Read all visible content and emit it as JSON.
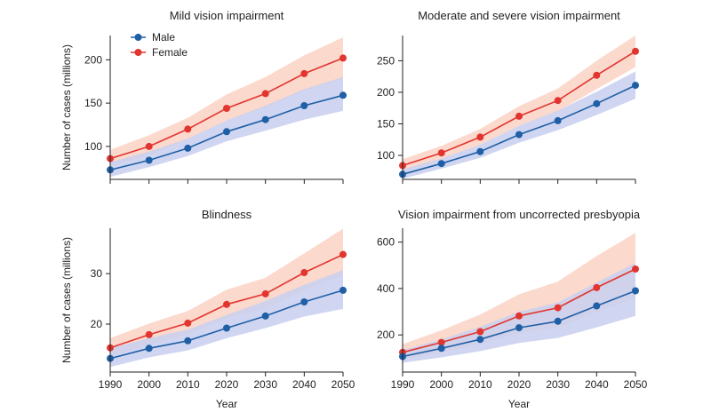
{
  "colors": {
    "male_line": "#1f5fa6",
    "male_band": "#c8cfee",
    "female_line": "#e2352f",
    "female_band": "#fad0c0"
  },
  "legend": {
    "placement": "top-left",
    "entries": [
      "Male",
      "Female"
    ]
  },
  "chart_data": [
    {
      "type": "line",
      "title": "Mild vision impairment",
      "xlabel": "",
      "ylabel": "Number of cases (millions)",
      "x": [
        1990,
        2000,
        2010,
        2020,
        2030,
        2040,
        2050
      ],
      "xticks": [],
      "yticks": [
        100,
        150,
        200
      ],
      "xlim": [
        1990,
        2050
      ],
      "ylim": [
        62,
        228
      ],
      "series": [
        {
          "name": "Male",
          "values": [
            73,
            84,
            98,
            117,
            131,
            147,
            159
          ],
          "lower": [
            65,
            76,
            89,
            106,
            118,
            131,
            141
          ],
          "upper": [
            82,
            94,
            109,
            130,
            147,
            166,
            180
          ]
        },
        {
          "name": "Female",
          "values": [
            86,
            100,
            120,
            144,
            161,
            184,
            202
          ],
          "lower": [
            77,
            90,
            108,
            130,
            145,
            164,
            178
          ],
          "upper": [
            96,
            113,
            133,
            160,
            180,
            205,
            226
          ]
        }
      ]
    },
    {
      "type": "line",
      "title": "Moderate and severe vision impairment",
      "xlabel": "",
      "ylabel": "",
      "x": [
        1990,
        2000,
        2010,
        2020,
        2030,
        2040,
        2050
      ],
      "xticks": [],
      "yticks": [
        100,
        150,
        200,
        250
      ],
      "xlim": [
        1990,
        2050
      ],
      "ylim": [
        62,
        290
      ],
      "series": [
        {
          "name": "Male",
          "values": [
            70,
            87,
            106,
            133,
            155,
            182,
            211
          ],
          "lower": [
            63,
            79,
            96,
            120,
            140,
            164,
            190
          ],
          "upper": [
            78,
            95,
            117,
            147,
            171,
            201,
            233
          ]
        },
        {
          "name": "Female",
          "values": [
            84,
            104,
            129,
            162,
            187,
            227,
            265
          ],
          "lower": [
            75,
            94,
            117,
            147,
            170,
            205,
            240
          ],
          "upper": [
            94,
            115,
            142,
            178,
            206,
            250,
            290
          ]
        }
      ]
    },
    {
      "type": "line",
      "title": "Blindness",
      "xlabel": "Year",
      "ylabel": "Number of cases (millions)",
      "x": [
        1990,
        2000,
        2010,
        2020,
        2030,
        2040,
        2050
      ],
      "xticks": [
        1990,
        2000,
        2010,
        2020,
        2030,
        2040,
        2050
      ],
      "yticks": [
        20,
        30
      ],
      "xlim": [
        1990,
        2050
      ],
      "ylim": [
        10.5,
        39
      ],
      "series": [
        {
          "name": "Male",
          "values": [
            13.2,
            15.2,
            16.7,
            19.2,
            21.6,
            24.4,
            26.7
          ],
          "lower": [
            11.5,
            13.4,
            14.8,
            17.2,
            19.2,
            21.5,
            23.0
          ],
          "upper": [
            15.2,
            17.2,
            18.9,
            21.8,
            24.6,
            27.8,
            30.7
          ]
        },
        {
          "name": "Female",
          "values": [
            15.3,
            17.9,
            20.2,
            23.9,
            26.0,
            30.2,
            33.8
          ],
          "lower": [
            13.6,
            15.9,
            18.0,
            21.2,
            23.1,
            26.7,
            29.7
          ],
          "upper": [
            17.2,
            20.1,
            22.6,
            26.8,
            29.2,
            34.0,
            38.9
          ]
        }
      ]
    },
    {
      "type": "line",
      "title": "Vision impairment from uncorrected presbyopia",
      "xlabel": "Year",
      "ylabel": "",
      "x": [
        1990,
        2000,
        2010,
        2020,
        2030,
        2040,
        2050
      ],
      "xticks": [
        1990,
        2000,
        2010,
        2020,
        2030,
        2040,
        2050
      ],
      "yticks": [
        200,
        400,
        600
      ],
      "xlim": [
        1990,
        2050
      ],
      "ylim": [
        40,
        660
      ],
      "series": [
        {
          "name": "Male",
          "values": [
            107,
            142,
            181,
            231,
            259,
            325,
            390
          ],
          "lower": [
            80,
            103,
            130,
            165,
            187,
            232,
            282
          ],
          "upper": [
            135,
            180,
            235,
            300,
            340,
            425,
            510
          ]
        },
        {
          "name": "Female",
          "values": [
            125,
            168,
            214,
            282,
            317,
            404,
            484
          ],
          "lower": [
            96,
            125,
            159,
            206,
            232,
            298,
            357
          ],
          "upper": [
            160,
            220,
            288,
            375,
            430,
            540,
            640
          ]
        }
      ]
    }
  ]
}
